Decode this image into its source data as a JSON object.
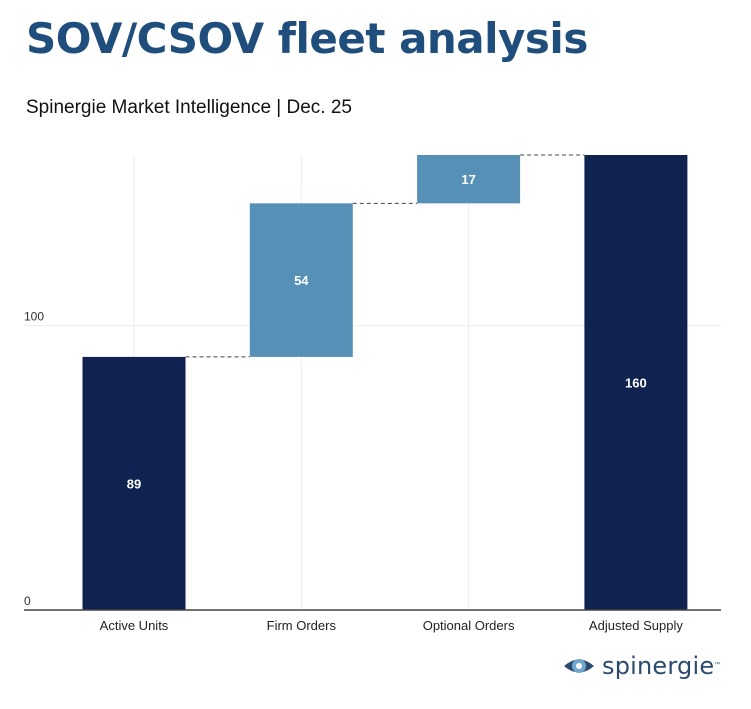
{
  "title": "SOV/CSOV fleet analysis",
  "subtitle": "Spinergie Market Intelligence | Dec. 25",
  "chart_data": {
    "type": "waterfall",
    "categories": [
      "Active Units",
      "Firm Orders",
      "Optional Orders",
      "Adjusted Supply"
    ],
    "steps": [
      {
        "label": "Active Units",
        "value": 89,
        "base": 0,
        "kind": "total"
      },
      {
        "label": "Firm Orders",
        "value": 54,
        "base": 89,
        "kind": "increase"
      },
      {
        "label": "Optional Orders",
        "value": 17,
        "base": 143,
        "kind": "increase"
      },
      {
        "label": "Adjusted Supply",
        "value": 160,
        "base": 0,
        "kind": "total"
      }
    ],
    "y_ticks": [
      0,
      100
    ],
    "ylim": [
      0,
      160
    ],
    "grid": true,
    "colors": {
      "total": "#0f2250",
      "increase": "#5690b6"
    }
  },
  "logo": {
    "text": "spinergie",
    "tm": "™"
  }
}
